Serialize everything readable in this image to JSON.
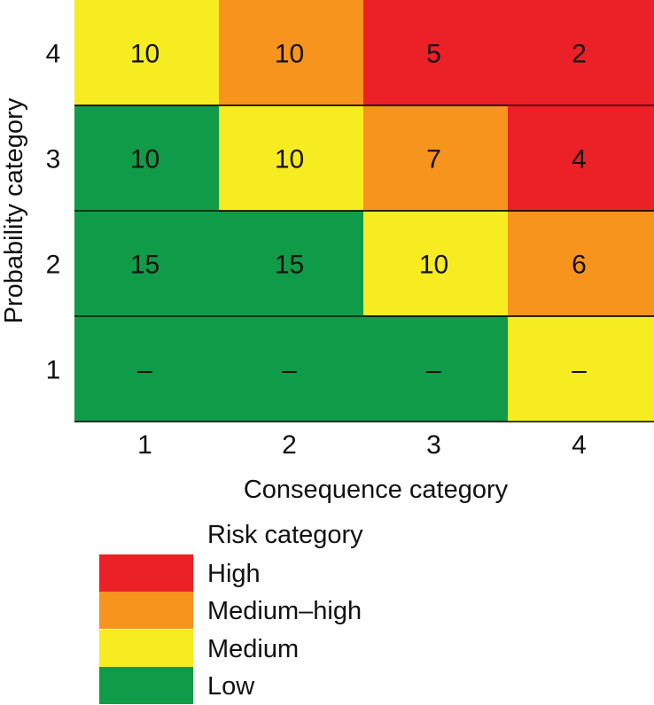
{
  "chart_data": {
    "type": "heatmap",
    "title": "",
    "xlabel": "Consequence category",
    "ylabel": "Probability category",
    "x_categories": [
      "1",
      "2",
      "3",
      "4"
    ],
    "y_categories": [
      "4",
      "3",
      "2",
      "1"
    ],
    "cells": [
      [
        {
          "value": "10",
          "risk": "Medium"
        },
        {
          "value": "10",
          "risk": "Medium-high"
        },
        {
          "value": "5",
          "risk": "High"
        },
        {
          "value": "2",
          "risk": "High"
        }
      ],
      [
        {
          "value": "10",
          "risk": "Low"
        },
        {
          "value": "10",
          "risk": "Medium"
        },
        {
          "value": "7",
          "risk": "Medium-high"
        },
        {
          "value": "4",
          "risk": "High"
        }
      ],
      [
        {
          "value": "15",
          "risk": "Low"
        },
        {
          "value": "15",
          "risk": "Low"
        },
        {
          "value": "10",
          "risk": "Medium"
        },
        {
          "value": "6",
          "risk": "Medium-high"
        }
      ],
      [
        {
          "value": "–",
          "risk": "Low"
        },
        {
          "value": "–",
          "risk": "Low"
        },
        {
          "value": "–",
          "risk": "Low"
        },
        {
          "value": "–",
          "risk": "Medium"
        }
      ]
    ],
    "legend": {
      "title": "Risk category",
      "entries": [
        {
          "key": "High",
          "label": "High",
          "color": "#ec2027"
        },
        {
          "key": "Medium-high",
          "label": "Medium–high",
          "color": "#f7941d"
        },
        {
          "key": "Medium",
          "label": "Medium",
          "color": "#f7ec1f"
        },
        {
          "key": "Low",
          "label": "Low",
          "color": "#109b48"
        }
      ]
    }
  }
}
